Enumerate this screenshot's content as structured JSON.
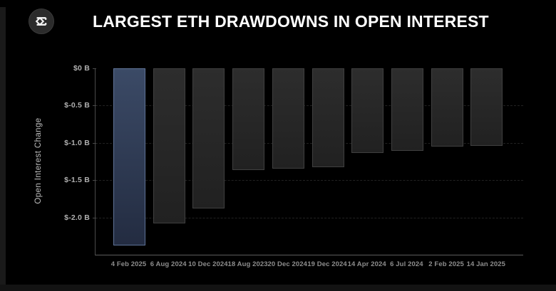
{
  "header": {
    "title": "LARGEST ETH DRAWDOWNS IN OPEN INTEREST",
    "logo_icon": "sigma-diamond-logo"
  },
  "chart_data": {
    "type": "bar",
    "title": "LARGEST ETH DRAWDOWNS IN OPEN INTEREST",
    "xlabel": "",
    "ylabel": "Open Interest Change",
    "unit": "$ billions",
    "categories": [
      "4 Feb 2025",
      "6 Aug 2024",
      "10 Dec 2024",
      "18 Aug 2023",
      "20 Dec 2024",
      "19 Dec 2024",
      "14 Apr 2024",
      "6 Jul 2024",
      "2 Feb 2025",
      "14 Jan 2025"
    ],
    "values": [
      -2.38,
      -2.08,
      -1.88,
      -1.36,
      -1.35,
      -1.33,
      -1.14,
      -1.11,
      -1.05,
      -1.04
    ],
    "ylim": [
      -2.5,
      0
    ],
    "yticks": [
      0,
      -0.5,
      -1.0,
      -1.5,
      -2.0
    ],
    "ytick_labels": [
      "$0 B",
      "$-0.5 B",
      "$-1.0 B",
      "$-1.5 B",
      "$-2.0 B"
    ],
    "highlight_index": 0,
    "grid": true,
    "legend": false,
    "colors": {
      "background": "#000000",
      "title": "#ffffff",
      "bar_top": "#2d2d2d",
      "bar_bottom": "#212121",
      "bar_border": "#404040",
      "highlight_top": "#3b4a66",
      "highlight_bottom": "#232c41",
      "highlight_border": "#5f7398",
      "gridline": "#222222",
      "axis": "#5d5d5d"
    }
  }
}
